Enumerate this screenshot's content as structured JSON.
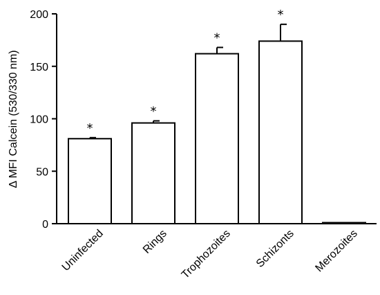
{
  "chart_data": {
    "type": "bar",
    "title": "",
    "xlabel": "",
    "ylabel": "Δ MFI Calcein (530/330 nm)",
    "ylim": [
      0,
      200
    ],
    "yticks": [
      0,
      50,
      100,
      150,
      200
    ],
    "categories": [
      "Uninfected",
      "Rings",
      "Trophozoites",
      "Schizonts",
      "Merozoites"
    ],
    "values": [
      81,
      96,
      162,
      174,
      1
    ],
    "errors": [
      1,
      2,
      6,
      16,
      0
    ],
    "annotations": [
      "*",
      "*",
      "*",
      "*",
      ""
    ],
    "grid": false,
    "bar_fill": "#ffffff",
    "bar_stroke": "#000000"
  }
}
